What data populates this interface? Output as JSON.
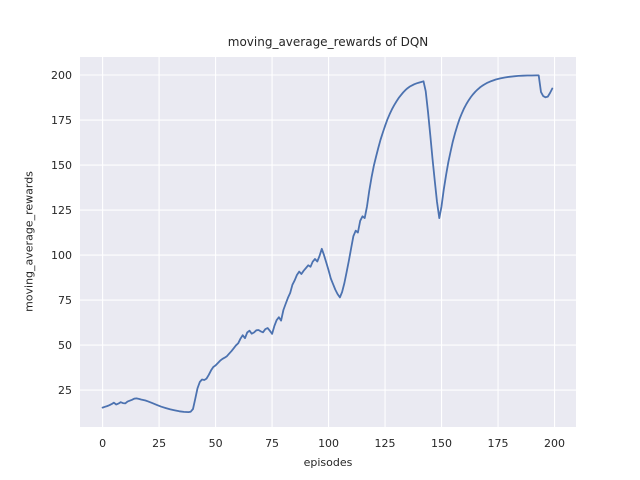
{
  "chart_data": {
    "type": "line",
    "title": "moving_average_rewards of DQN",
    "xlabel": "episodes",
    "ylabel": "moving_average_rewards",
    "x_ticks": [
      0,
      25,
      50,
      75,
      100,
      125,
      150,
      175,
      200
    ],
    "y_ticks": [
      25,
      50,
      75,
      100,
      125,
      150,
      175,
      200
    ],
    "xlim": [
      -10.0,
      209.5
    ],
    "ylim": [
      4.5,
      210.0
    ],
    "grid": true,
    "legend_position": "none",
    "style": {
      "figure_bg": "#ffffff",
      "axes_bg": "#eaeaf2",
      "grid_color": "#ffffff",
      "line_color": "#4c72b0",
      "text_color": "#262626"
    },
    "series": [
      {
        "name": "DQN",
        "color": "#4c72b0",
        "x": [
          0,
          1,
          2,
          3,
          4,
          5,
          6,
          7,
          8,
          9,
          10,
          11,
          12,
          13,
          14,
          15,
          16,
          17,
          18,
          19,
          20,
          22,
          24,
          26,
          28,
          30,
          32,
          34,
          36,
          38,
          39,
          40,
          41,
          42,
          43,
          44,
          45,
          46,
          47,
          48,
          49,
          50,
          51,
          52,
          53,
          54,
          55,
          56,
          57,
          58,
          59,
          60,
          61,
          62,
          63,
          64,
          65,
          66,
          67,
          68,
          69,
          70,
          71,
          72,
          73,
          74,
          75,
          76,
          77,
          78,
          79,
          80,
          81,
          82,
          83,
          84,
          85,
          86,
          87,
          88,
          89,
          90,
          91,
          92,
          93,
          94,
          95,
          96,
          97,
          98,
          99,
          100,
          101,
          102,
          103,
          104,
          105,
          106,
          107,
          108,
          109,
          110,
          111,
          112,
          113,
          114,
          115,
          116,
          117,
          118,
          119,
          120,
          121,
          122,
          123,
          124,
          125,
          126,
          127,
          128,
          129,
          130,
          131,
          132,
          133,
          134,
          135,
          136,
          137,
          138,
          139,
          140,
          141,
          142,
          143,
          144,
          145,
          146,
          147,
          148,
          149,
          150,
          151,
          152,
          153,
          154,
          155,
          156,
          157,
          158,
          159,
          160,
          161,
          162,
          163,
          164,
          165,
          166,
          167,
          168,
          169,
          170,
          172,
          174,
          176,
          178,
          180,
          182,
          184,
          186,
          188,
          190,
          192,
          193,
          194,
          195,
          196,
          197,
          198,
          199
        ],
        "y": [
          15.3,
          15.7,
          16.1,
          16.6,
          17.2,
          18.0,
          17.0,
          17.5,
          18.3,
          17.8,
          17.6,
          18.6,
          19.1,
          19.6,
          20.2,
          20.4,
          20.1,
          19.8,
          19.5,
          19.2,
          18.8,
          17.8,
          16.8,
          15.8,
          15.0,
          14.3,
          13.7,
          13.2,
          12.9,
          12.8,
          13.0,
          14.5,
          20.0,
          26.0,
          29.5,
          30.9,
          30.6,
          31.4,
          33.5,
          36.0,
          37.8,
          38.7,
          40.0,
          41.3,
          42.3,
          43.0,
          43.8,
          45.2,
          46.6,
          48.2,
          49.8,
          51.0,
          53.5,
          55.5,
          53.8,
          57.0,
          58.0,
          56.3,
          57.0,
          58.2,
          58.4,
          57.6,
          57.1,
          58.8,
          59.5,
          58.0,
          56.2,
          60.5,
          63.8,
          65.5,
          63.6,
          69.5,
          72.8,
          76.2,
          79.0,
          83.5,
          86.0,
          88.9,
          90.8,
          89.5,
          91.3,
          92.8,
          94.3,
          93.5,
          96.3,
          97.8,
          96.4,
          99.5,
          103.5,
          100.0,
          95.8,
          91.5,
          87.0,
          83.8,
          80.8,
          78.3,
          76.5,
          79.5,
          84.5,
          90.5,
          97.0,
          104.0,
          110.5,
          113.5,
          112.5,
          119.0,
          121.5,
          120.5,
          127.0,
          135.5,
          143.0,
          149.5,
          154.5,
          159.5,
          164.0,
          168.0,
          171.8,
          175.2,
          178.2,
          180.8,
          183.2,
          185.3,
          187.2,
          188.8,
          190.3,
          191.6,
          192.7,
          193.6,
          194.3,
          194.9,
          195.4,
          195.8,
          196.1,
          196.5,
          191.0,
          179.5,
          166.5,
          153.5,
          141.0,
          129.5,
          120.5,
          127.0,
          136.5,
          144.5,
          151.5,
          157.5,
          163.0,
          167.8,
          172.0,
          175.7,
          178.8,
          181.5,
          183.9,
          186.0,
          187.8,
          189.4,
          190.8,
          192.0,
          193.1,
          194.0,
          194.8,
          195.5,
          196.6,
          197.5,
          198.1,
          198.6,
          199.0,
          199.3,
          199.5,
          199.6,
          199.7,
          199.7,
          199.8,
          199.8,
          190.5,
          188.3,
          187.6,
          188.0,
          190.0,
          192.5
        ]
      }
    ]
  }
}
